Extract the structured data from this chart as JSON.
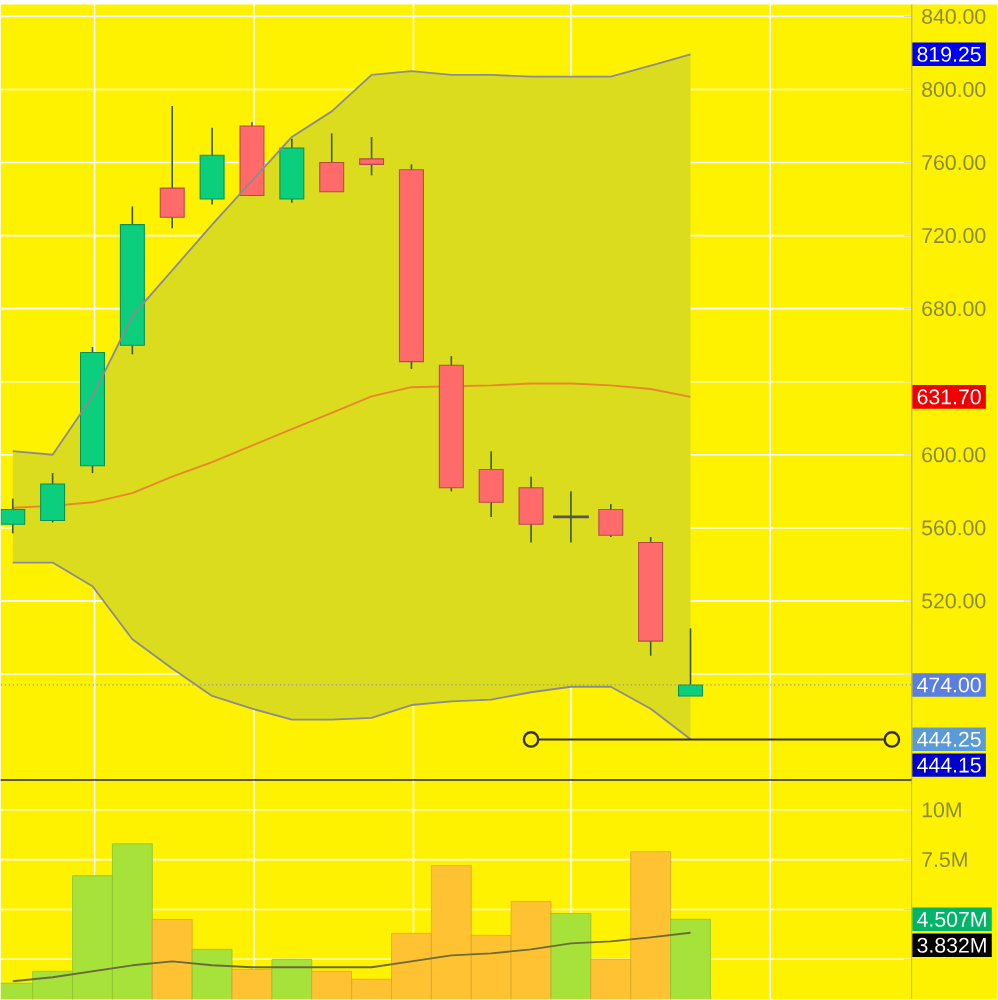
{
  "chart_data": [
    {
      "type": "candlestick",
      "categories": [
        null,
        null,
        null,
        null,
        null,
        null,
        null,
        null,
        null,
        null,
        null,
        null,
        null,
        null,
        null,
        null,
        null,
        null
      ],
      "ohlc": [
        [
          562,
          576,
          557,
          570
        ],
        [
          564,
          590,
          563,
          584
        ],
        [
          594,
          659,
          590,
          656
        ],
        [
          660,
          736,
          655,
          726
        ],
        [
          746,
          791,
          724,
          730
        ],
        [
          740,
          779,
          737,
          764
        ],
        [
          780,
          782,
          742,
          742
        ],
        [
          740,
          773,
          738,
          768
        ],
        [
          760,
          776,
          744,
          744
        ],
        [
          762,
          774,
          753,
          759
        ],
        [
          756,
          759,
          647,
          651
        ],
        [
          649,
          654,
          580,
          582
        ],
        [
          592,
          602,
          566,
          574
        ],
        [
          582,
          588,
          552,
          562
        ],
        [
          566,
          580,
          552,
          566
        ],
        [
          570,
          573,
          555,
          556
        ],
        [
          552,
          555,
          490,
          498
        ],
        [
          468,
          505,
          468,
          474
        ]
      ],
      "colors": [
        "#0ccf7d",
        "#0ccf7d",
        "#0ccf7d",
        "#0ccf7d",
        "#ff6b6b",
        "#0ccf7d",
        "#ff6b6b",
        "#0ccf7d",
        "#ff6b6b",
        "#ff6b6b",
        "#ff6b6b",
        "#ff6b6b",
        "#ff6b6b",
        "#ff6b6b",
        "#555555",
        "#ff6b6b",
        "#ff6b6b",
        "#0ccf7d"
      ],
      "series": [
        {
          "type": "line",
          "color": "#8c8c8c",
          "values": [
            602,
            600,
            632,
            676,
            701,
            726,
            750,
            774,
            788,
            808,
            810,
            808,
            808,
            807,
            807,
            807,
            813,
            819.25
          ]
        },
        {
          "type": "line",
          "color": "#8c8c8c",
          "values": [
            541,
            541,
            528,
            499,
            483,
            468,
            461,
            455,
            455,
            456,
            463,
            465,
            466,
            470,
            473,
            473,
            461,
            444.25
          ]
        },
        {
          "type": "line",
          "color": "#e8872a",
          "values": [
            571,
            572,
            574,
            579,
            588,
            596,
            605,
            614,
            623,
            632,
            637,
            null,
            638,
            639,
            639,
            638,
            636,
            631.7
          ],
          "lower": [
            541,
            541,
            528,
            499,
            483,
            468,
            461,
            455,
            455,
            456,
            463,
            465,
            466,
            470,
            473,
            473,
            461,
            444.25
          ],
          "upper": [
            602,
            600,
            632,
            676,
            701,
            726,
            750,
            774,
            788,
            808,
            810,
            808,
            808,
            807,
            807,
            807,
            813,
            819.25
          ]
        }
      ],
      "ref_lines": [
        {
          "axis": "y",
          "value": 474,
          "label": "474.00",
          "line_style": "dotted",
          "color": "#999999"
        },
        {
          "axis": "y",
          "value": 444.15,
          "label": "444.15",
          "line_style": "solid",
          "color": "#333333"
        }
      ],
      "annotations": [
        "819.25",
        "631.70",
        "444.25"
      ],
      "ylim": [
        422,
        846.5
      ],
      "yticks": [
        {
          "value": 480,
          "label": null
        },
        {
          "value": 520,
          "label": "520.00"
        },
        {
          "value": 560,
          "label": "560.00"
        },
        {
          "value": 600,
          "label": "600.00"
        },
        {
          "value": 640,
          "label": null
        },
        {
          "value": 680,
          "label": "680.00"
        },
        {
          "value": 720,
          "label": "720.00"
        },
        {
          "value": 760,
          "label": "760.00"
        },
        {
          "value": 800,
          "label": "800.00"
        },
        {
          "value": 840,
          "label": "840.00"
        }
      ],
      "grid": true,
      "tick_labels": "y"
    },
    {
      "type": "bar",
      "categories": [
        null,
        null,
        null,
        null,
        null,
        null,
        null,
        null,
        null,
        null,
        null,
        null,
        null,
        null,
        null,
        null,
        null,
        null
      ],
      "series": [
        {
          "type": "bar",
          "values": [
            1.3,
            1.9,
            6.7,
            8.3,
            4.5,
            3.0,
            2.0,
            2.5,
            1.9,
            1.5,
            3.8,
            7.2,
            3.7,
            5.4,
            4.8,
            2.5,
            7.9,
            4.507
          ],
          "colors": [
            "#a6e23a",
            "#a6e23a",
            "#a6e23a",
            "#a6e23a",
            "#ffc233",
            "#a6e23a",
            "#ffc233",
            "#a6e23a",
            "#ffc233",
            "#ffc233",
            "#ffc233",
            "#ffc233",
            "#ffc233",
            "#ffc233",
            "#a6e23a",
            "#ffc233",
            "#ffc233",
            "#a6e23a"
          ]
        },
        {
          "type": "line",
          "color": "#6b6b3a",
          "values": [
            1.4,
            1.6,
            1.9,
            2.2,
            2.4,
            2.2,
            2.1,
            2.1,
            2.1,
            2.1,
            2.4,
            2.7,
            2.8,
            3.0,
            3.3,
            3.4,
            3.6,
            3.832
          ]
        }
      ],
      "annotations": [
        "4.507M",
        "3.832M"
      ],
      "ylim": [
        0.5,
        11.5
      ],
      "yticks": [
        {
          "value": 2.5,
          "label": null
        },
        {
          "value": 5,
          "label": null
        },
        {
          "value": 7.5,
          "label": "7.5M"
        },
        {
          "value": 10,
          "label": "10M"
        }
      ],
      "grid": true,
      "tick_labels": "y"
    }
  ]
}
